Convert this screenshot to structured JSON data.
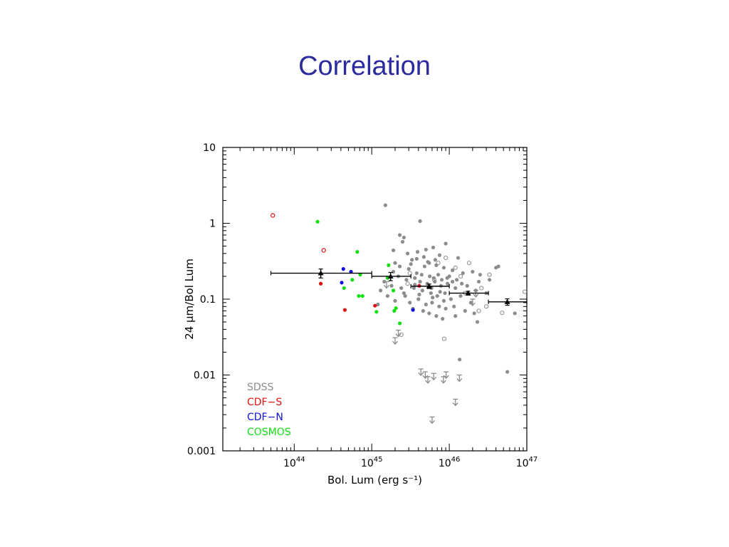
{
  "slide": {
    "title": "Correlation"
  },
  "chart_data": {
    "type": "scatter",
    "title": "",
    "xlabel": "Bol. Lum (erg s⁻¹)",
    "ylabel": "24 μm/Bol Lum",
    "xscale": "log",
    "yscale": "log",
    "xlim": [
      1.2e+43,
      1e+47
    ],
    "ylim": [
      0.001,
      10
    ],
    "x_ticks": [
      {
        "value": 1e+44,
        "mant": "10",
        "exp": "44"
      },
      {
        "value": 1e+45,
        "mant": "10",
        "exp": "45"
      },
      {
        "value": 1e+46,
        "mant": "10",
        "exp": "46"
      },
      {
        "value": 1e+47,
        "mant": "10",
        "exp": "47"
      }
    ],
    "y_ticks": [
      {
        "value": 10,
        "label": "10"
      },
      {
        "value": 1,
        "label": "1"
      },
      {
        "value": 0.1,
        "label": "0.1"
      },
      {
        "value": 0.01,
        "label": "0.01"
      },
      {
        "value": 0.001,
        "label": "0.001"
      }
    ],
    "legend_position": "bottom-left",
    "legend": [
      {
        "name": "SDSS",
        "color": "#8c8c8c"
      },
      {
        "name": "CDF−S",
        "color": "#e01010"
      },
      {
        "name": "CDF−N",
        "color": "#1010e0"
      },
      {
        "name": "COSMOS",
        "color": "#10e010"
      }
    ],
    "colors": {
      "SDSS": "#8c8c8c",
      "CDF-S": "#e01010",
      "CDF-N": "#1010e0",
      "COSMOS": "#10e010",
      "bins": "#000000"
    },
    "series": [
      {
        "name": "SDSS",
        "points": [
          [
            1.5e+45,
            1.73
          ],
          [
            4.2e+45,
            1.07
          ],
          [
            2.3e+45,
            0.7
          ],
          [
            2.6e+45,
            0.65
          ],
          [
            2.5e+45,
            0.57
          ],
          [
            9e+45,
            0.54
          ],
          [
            2.9e+45,
            0.4
          ],
          [
            3.9e+45,
            0.42
          ],
          [
            5e+45,
            0.45
          ],
          [
            6.2e+45,
            0.48
          ],
          [
            7.5e+45,
            0.38
          ],
          [
            1.3e+46,
            0.35
          ],
          [
            3.3e+45,
            0.33
          ],
          [
            5.5e+45,
            0.3
          ],
          [
            4.8e+45,
            0.27
          ],
          [
            3e+45,
            0.25
          ],
          [
            6.8e+45,
            0.28
          ],
          [
            8.5e+45,
            0.26
          ],
          [
            1.1e+46,
            0.24
          ],
          [
            1.5e+46,
            0.22
          ],
          [
            2e+46,
            0.23
          ],
          [
            2.5e+46,
            0.21
          ],
          [
            4e+46,
            0.26
          ],
          [
            1.9e+45,
            0.23
          ],
          [
            2.2e+45,
            0.2
          ],
          [
            2.8e+45,
            0.18
          ],
          [
            3.6e+45,
            0.19
          ],
          [
            4.2e+45,
            0.17
          ],
          [
            5.2e+45,
            0.16
          ],
          [
            6.5e+45,
            0.17
          ],
          [
            7.8e+45,
            0.15
          ],
          [
            9.5e+45,
            0.16
          ],
          [
            1.2e+46,
            0.14
          ],
          [
            1.7e+46,
            0.15
          ],
          [
            2.2e+46,
            0.13
          ],
          [
            3e+46,
            0.12
          ],
          [
            3.5e+45,
            0.14
          ],
          [
            4.5e+45,
            0.13
          ],
          [
            5.8e+45,
            0.12
          ],
          [
            7e+45,
            0.11
          ],
          [
            8.8e+45,
            0.12
          ],
          [
            1.05e+46,
            0.1
          ],
          [
            1.4e+46,
            0.11
          ],
          [
            1.9e+46,
            0.09
          ],
          [
            2.7e+45,
            0.11
          ],
          [
            3.1e+45,
            0.09
          ],
          [
            4e+45,
            0.1
          ],
          [
            5e+45,
            0.085
          ],
          [
            6e+45,
            0.09
          ],
          [
            7.4e+45,
            0.08
          ],
          [
            9e+45,
            0.075
          ],
          [
            1.15e+46,
            0.08
          ],
          [
            1.6e+46,
            0.07
          ],
          [
            2.1e+46,
            0.065
          ],
          [
            3.4e+45,
            0.075
          ],
          [
            4.6e+45,
            0.07
          ],
          [
            5.5e+45,
            0.065
          ],
          [
            6.8e+45,
            0.06
          ],
          [
            8.2e+45,
            0.055
          ],
          [
            1.2e+46,
            0.06
          ],
          [
            2.3e+46,
            0.05
          ],
          [
            1.3e+45,
            0.13
          ],
          [
            1.6e+45,
            0.11
          ],
          [
            2e+45,
            0.095
          ],
          [
            1.2e+45,
            0.085
          ],
          [
            1.45e+45,
            0.17
          ],
          [
            1.8e+45,
            0.15
          ],
          [
            2.4e+45,
            0.14
          ],
          [
            2.6e+45,
            0.12
          ],
          [
            3.8e+45,
            0.22
          ],
          [
            4.4e+45,
            0.21
          ],
          [
            5.6e+45,
            0.2
          ],
          [
            6.3e+45,
            0.19
          ],
          [
            7.2e+45,
            0.21
          ],
          [
            8e+45,
            0.18
          ],
          [
            9.4e+45,
            0.19
          ],
          [
            1e+46,
            0.2
          ],
          [
            1.1e+46,
            0.17
          ],
          [
            1.25e+46,
            0.18
          ],
          [
            1.45e+46,
            0.16
          ],
          [
            2.4e+46,
            0.17
          ],
          [
            3.3e+46,
            0.18
          ],
          [
            3.8e+45,
            0.34
          ],
          [
            4.7e+45,
            0.36
          ],
          [
            5.3e+45,
            0.31
          ],
          [
            6.6e+45,
            0.33
          ],
          [
            2e+45,
            0.3
          ],
          [
            2.3e+45,
            0.27
          ],
          [
            3.2e+45,
            0.29
          ],
          [
            1.9e+45,
            0.44
          ],
          [
            5.9e+45,
            0.14
          ],
          [
            6.1e+45,
            0.105
          ],
          [
            7.6e+45,
            0.125
          ],
          [
            8.5e+45,
            0.095
          ],
          [
            4.1e+45,
            0.115
          ],
          [
            3.6e+45,
            0.155
          ],
          [
            1.36e+46,
            0.016
          ],
          [
            5.6e+46,
            0.011
          ],
          [
            7e+46,
            0.065
          ],
          [
            4.3e+46,
            0.27
          ]
        ]
      },
      {
        "name": "SDSS (open)",
        "points": [
          [
            3.1e+45,
            0.22
          ],
          [
            9e+45,
            0.35
          ],
          [
            1.4e+46,
            0.2
          ],
          [
            2.6e+46,
            0.14
          ],
          [
            1.2e+46,
            0.26
          ],
          [
            1.8e+46,
            0.3
          ],
          [
            2.4e+45,
            0.034
          ],
          [
            8.6e+45,
            0.03
          ],
          [
            2.4e+46,
            0.07
          ],
          [
            3e+46,
            0.08
          ],
          [
            4.8e+46,
            0.066
          ],
          [
            9.4e+46,
            0.125
          ],
          [
            6.4e+45,
            0.18
          ],
          [
            7.2e+45,
            0.3
          ],
          [
            1.6e+46,
            0.12
          ],
          [
            3.3e+46,
            0.21
          ],
          [
            2.9e+45,
            0.16
          ]
        ]
      },
      {
        "name": "SDSS (upper limit)",
        "points": [
          [
            1.55e+45,
            0.17
          ],
          [
            2.2e+45,
            0.039
          ],
          [
            2e+45,
            0.031
          ],
          [
            4.3e+45,
            0.012
          ],
          [
            4.9e+45,
            0.011
          ],
          [
            5.3e+45,
            0.0095
          ],
          [
            6.3e+45,
            0.0105
          ],
          [
            8.4e+45,
            0.0095
          ],
          [
            9.1e+45,
            0.011
          ],
          [
            1.35e+46,
            0.01
          ],
          [
            1.2e+46,
            0.0048
          ],
          [
            6e+45,
            0.0028
          ],
          [
            2e+46,
            0.1
          ],
          [
            2.2e+46,
            0.13
          ]
        ]
      },
      {
        "name": "CDF-S",
        "points": [
          [
            2.2e+44,
            0.16
          ],
          [
            4.5e+44,
            0.072
          ],
          [
            1.1e+45,
            0.082
          ],
          [
            4.1e+45,
            0.15
          ]
        ]
      },
      {
        "name": "CDF-S (open)",
        "points": [
          [
            5.3e+43,
            1.27
          ],
          [
            2.4e+44,
            0.44
          ]
        ]
      },
      {
        "name": "CDF-N",
        "points": [
          [
            4.3e+44,
            0.25
          ],
          [
            5.4e+44,
            0.23
          ],
          [
            4.1e+44,
            0.165
          ],
          [
            3.4e+45,
            0.072
          ]
        ]
      },
      {
        "name": "COSMOS",
        "points": [
          [
            2e+44,
            1.05
          ],
          [
            6.5e+44,
            0.42
          ],
          [
            4.4e+44,
            0.14
          ],
          [
            5.6e+44,
            0.18
          ],
          [
            6.8e+44,
            0.11
          ],
          [
            7.6e+44,
            0.11
          ],
          [
            7.1e+44,
            0.21
          ],
          [
            1.65e+45,
            0.28
          ],
          [
            1.9e+45,
            0.13
          ],
          [
            1.15e+45,
            0.068
          ],
          [
            1.95e+45,
            0.07
          ],
          [
            2.05e+45,
            0.076
          ],
          [
            2.3e+45,
            0.048
          ],
          [
            1.6e+45,
            0.19
          ]
        ]
      }
    ],
    "binned": {
      "name": "Binned mean",
      "points": [
        {
          "x": 2.2e+44,
          "xlo": 5e+43,
          "xhi": 1e+45,
          "y": 0.22,
          "ylo": 0.19,
          "yhi": 0.25
        },
        {
          "x": 1.75e+45,
          "xlo": 1e+45,
          "xhi": 3.2e+45,
          "y": 0.2,
          "ylo": 0.175,
          "yhi": 0.225
        },
        {
          "x": 5.5e+45,
          "xlo": 3.2e+45,
          "xhi": 1e+46,
          "y": 0.148,
          "ylo": 0.138,
          "yhi": 0.158
        },
        {
          "x": 1.75e+46,
          "xlo": 1e+46,
          "xhi": 3.2e+46,
          "y": 0.12,
          "ylo": 0.113,
          "yhi": 0.127
        },
        {
          "x": 5.6e+46,
          "xlo": 3.2e+46,
          "xhi": 1e+47,
          "y": 0.092,
          "ylo": 0.083,
          "yhi": 0.101
        }
      ]
    }
  }
}
